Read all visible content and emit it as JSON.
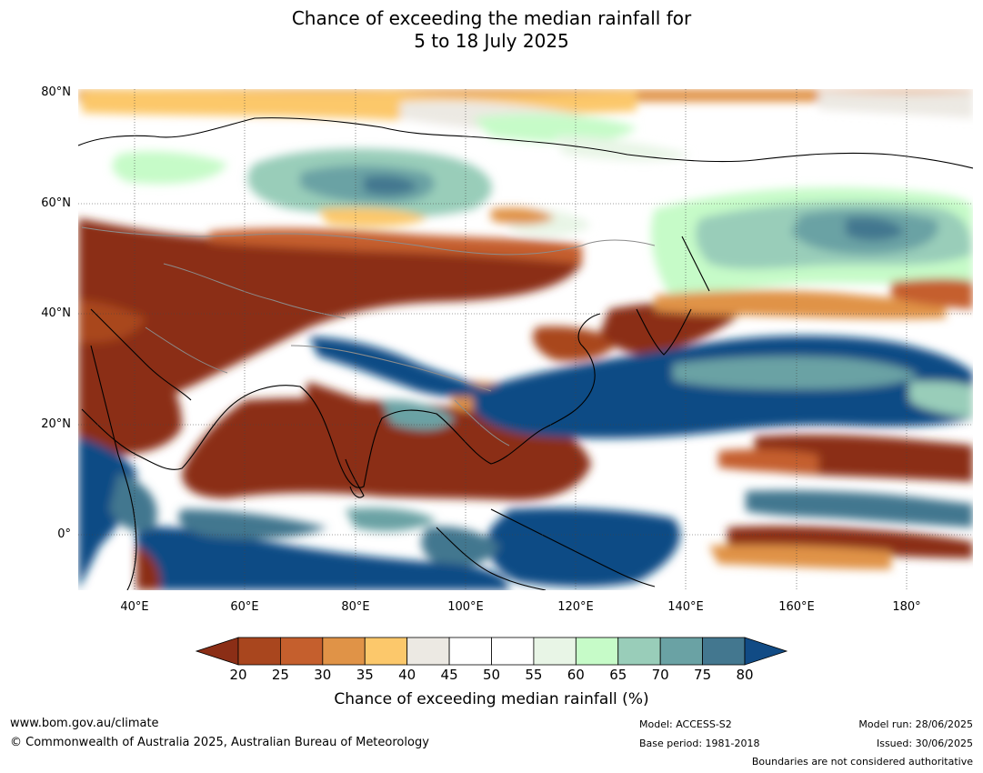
{
  "title": {
    "line1": "Chance of exceeding the median rainfall for",
    "line2": "5 to 18 July 2025"
  },
  "axes": {
    "lat_labels": [
      "80°N",
      "60°N",
      "40°N",
      "20°N",
      "0°"
    ],
    "lon_labels": [
      "40°E",
      "60°E",
      "80°E",
      "100°E",
      "120°E",
      "140°E",
      "160°E",
      "180°"
    ]
  },
  "legend": {
    "title": "Chance of exceeding median rainfall (%)",
    "ticks": [
      "20",
      "25",
      "30",
      "35",
      "40",
      "45",
      "50",
      "55",
      "60",
      "65",
      "70",
      "75",
      "80"
    ],
    "colors": [
      "#8b2e16",
      "#a9461e",
      "#c55f2d",
      "#e09347",
      "#fcc86b",
      "#ece9e3",
      "#ffffff",
      "#ffffff",
      "#e8f5e6",
      "#c6fbc8",
      "#99cdb9",
      "#6aa2a4",
      "#43778f",
      "#114b85"
    ]
  },
  "footer": {
    "url": "www.bom.gov.au/climate",
    "copyright": "© Commonwealth of Australia 2025, Australian Bureau of Meteorology",
    "model": "Model: ACCESS-S2",
    "base_period": "Base period: 1981-2018",
    "model_run": "Model run: 28/06/2025",
    "issued": "Issued: 30/06/2025",
    "disclaimer": "Boundaries are not considered authoritative"
  }
}
